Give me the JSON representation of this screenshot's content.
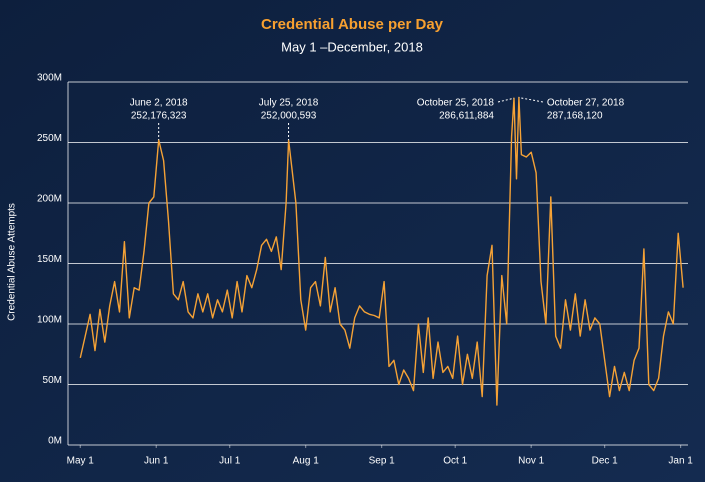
{
  "chart_data": {
    "type": "line",
    "title": "Credential Abuse per Day",
    "subtitle": "May 1 –December, 2018",
    "y_label": "Credential Abuse Attempts",
    "color": "#f5a236",
    "grid": true,
    "xlim": [
      -5,
      248
    ],
    "xticks": [
      {
        "value": 0,
        "label": "May 1"
      },
      {
        "value": 31,
        "label": "Jun 1"
      },
      {
        "value": 61,
        "label": "Jul 1"
      },
      {
        "value": 92,
        "label": "Aug 1"
      },
      {
        "value": 123,
        "label": "Sep 1"
      },
      {
        "value": 153,
        "label": "Oct 1"
      },
      {
        "value": 184,
        "label": "Nov 1"
      },
      {
        "value": 214,
        "label": "Dec 1"
      },
      {
        "value": 245,
        "label": "Jan 1"
      }
    ],
    "ylim": [
      0,
      300
    ],
    "yticks": [
      {
        "value": 0,
        "label": "0M"
      },
      {
        "value": 50,
        "label": "50M"
      },
      {
        "value": 100,
        "label": "100M"
      },
      {
        "value": 150,
        "label": "150M"
      },
      {
        "value": 200,
        "label": "200M"
      },
      {
        "value": 250,
        "label": "250M"
      },
      {
        "value": 300,
        "label": "300M"
      }
    ],
    "x": [
      0,
      2,
      4,
      6,
      8,
      10,
      12,
      14,
      16,
      18,
      20,
      22,
      24,
      26,
      28,
      30,
      32,
      34,
      36,
      38,
      40,
      42,
      44,
      46,
      48,
      50,
      52,
      54,
      56,
      58,
      60,
      62,
      64,
      66,
      68,
      70,
      72,
      74,
      76,
      78,
      80,
      82,
      84,
      85,
      86,
      88,
      90,
      92,
      94,
      96,
      98,
      100,
      102,
      104,
      106,
      108,
      110,
      112,
      114,
      116,
      118,
      120,
      122,
      124,
      126,
      128,
      130,
      132,
      134,
      136,
      138,
      140,
      142,
      144,
      146,
      148,
      150,
      152,
      154,
      156,
      158,
      160,
      162,
      164,
      166,
      168,
      170,
      172,
      174,
      176,
      177,
      178,
      179,
      180,
      182,
      184,
      186,
      188,
      190,
      192,
      194,
      196,
      198,
      200,
      202,
      204,
      206,
      208,
      210,
      212,
      214,
      216,
      218,
      220,
      222,
      224,
      226,
      228,
      230,
      232,
      234,
      236,
      238,
      240,
      242,
      244,
      246
    ],
    "values": [
      72,
      90,
      108,
      78,
      112,
      85,
      115,
      135,
      110,
      168,
      105,
      130,
      128,
      160,
      200,
      205,
      252.176323,
      235,
      185,
      125,
      120,
      135,
      110,
      105,
      125,
      110,
      125,
      105,
      120,
      110,
      128,
      105,
      135,
      110,
      140,
      130,
      145,
      165,
      170,
      160,
      172,
      145,
      200,
      252.000593,
      235,
      200,
      120,
      95,
      130,
      135,
      115,
      155,
      110,
      130,
      100,
      95,
      80,
      105,
      115,
      110,
      108,
      107,
      105,
      135,
      65,
      70,
      50,
      62,
      55,
      45,
      100,
      60,
      105,
      55,
      85,
      60,
      65,
      55,
      90,
      50,
      75,
      55,
      85,
      40,
      140,
      165,
      33,
      140,
      100,
      255,
      286.611884,
      220,
      287.16812,
      240,
      238,
      242,
      225,
      135,
      100,
      205,
      90,
      80,
      120,
      95,
      125,
      90,
      120,
      95,
      105,
      100,
      70,
      40,
      65,
      45,
      60,
      45,
      70,
      80,
      162,
      50,
      45,
      55,
      90,
      110,
      100,
      175,
      130
    ],
    "annotations": [
      {
        "x": 32,
        "y": 252.176323,
        "date": "June 2, 2018",
        "label": "252,176,323"
      },
      {
        "x": 85,
        "y": 252.000593,
        "date": "July 25, 2018",
        "label": "252,000,593"
      },
      {
        "x": 177,
        "y": 286.611884,
        "date": "October 25, 2018",
        "label": "286,611,884"
      },
      {
        "x": 179,
        "y": 287.16812,
        "date": "October 27, 2018",
        "label": "287,168,120"
      }
    ]
  }
}
